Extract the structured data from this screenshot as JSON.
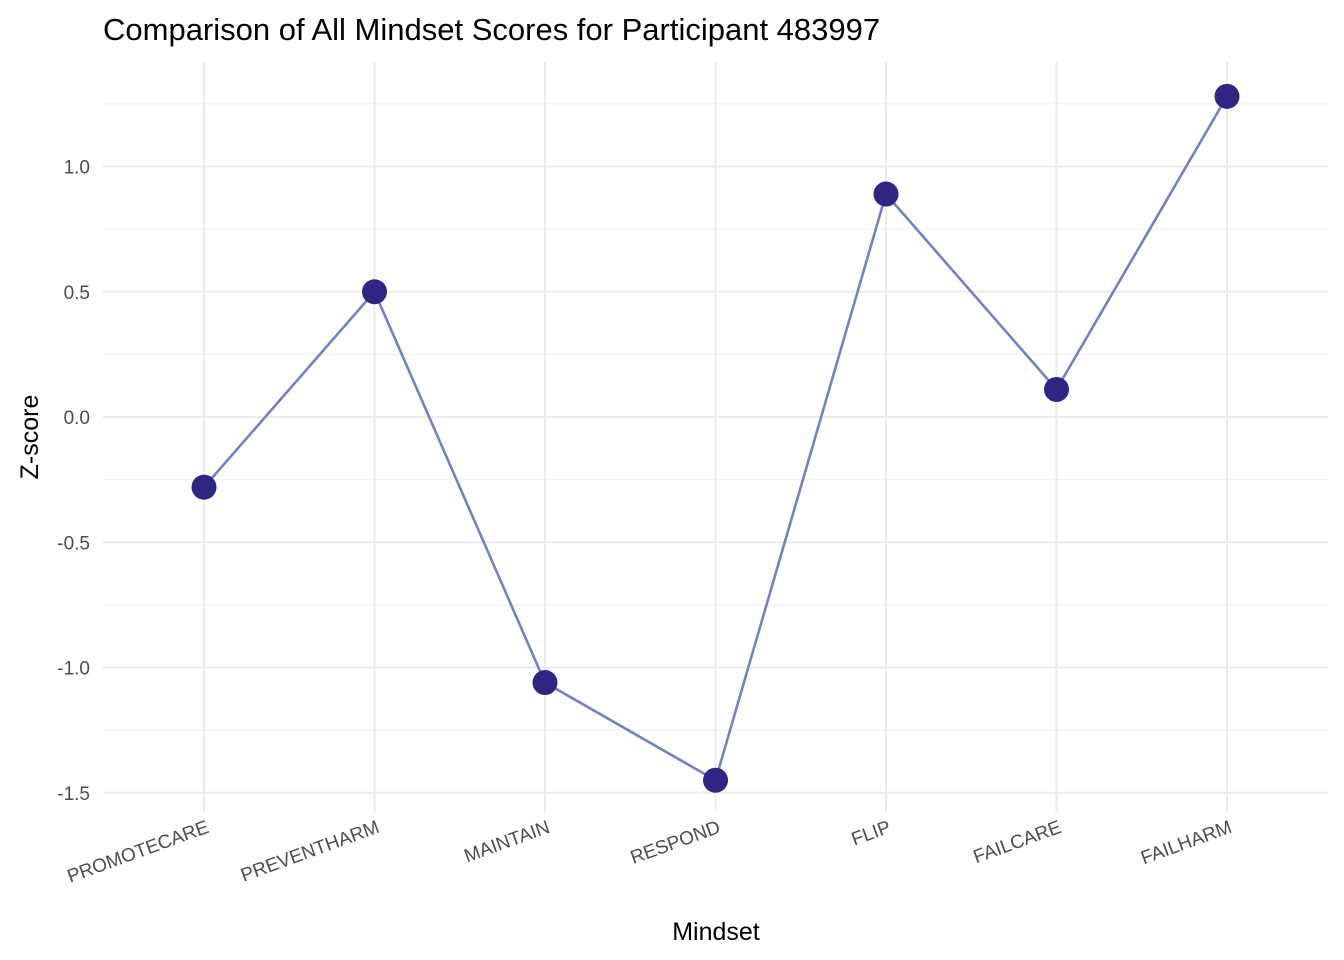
{
  "chart_data": {
    "type": "line",
    "title": "Comparison of All Mindset Scores for Participant 483997",
    "xlabel": "Mindset",
    "ylabel": "Z-score",
    "categories": [
      "PROMOTECARE",
      "PREVENTHARM",
      "MAINTAIN",
      "RESPOND",
      "FLIP",
      "FAILCARE",
      "FAILHARM"
    ],
    "series": [
      {
        "values": [
          -0.28,
          0.5,
          -1.06,
          -1.45,
          0.89,
          0.11,
          1.28
        ]
      }
    ],
    "ylim": [
      -1.6,
      1.4
    ],
    "yticks": [
      -1.5,
      -1.0,
      -0.5,
      0.0,
      0.5,
      1.0
    ],
    "ytick_labels": [
      "-1.5",
      "-1.0",
      "-0.5",
      "0.0",
      "0.5",
      "1.0"
    ],
    "grid": true,
    "legend": "none",
    "colors": {
      "line": "#7083c2",
      "point": "#2e2682"
    }
  }
}
